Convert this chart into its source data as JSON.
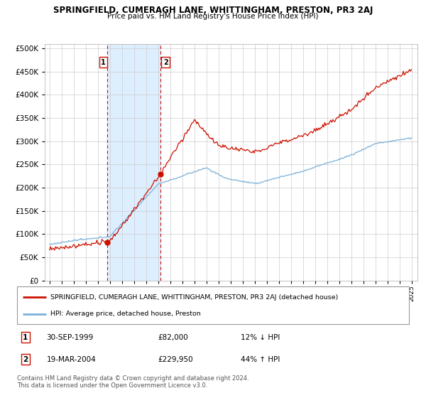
{
  "title": "SPRINGFIELD, CUMERAGH LANE, WHITTINGHAM, PRESTON, PR3 2AJ",
  "subtitle": "Price paid vs. HM Land Registry's House Price Index (HPI)",
  "yticks": [
    0,
    50000,
    100000,
    150000,
    200000,
    250000,
    300000,
    350000,
    400000,
    450000,
    500000
  ],
  "ylim": [
    0,
    510000
  ],
  "hpi_color": "#7ab0d8",
  "price_color": "#cc1100",
  "sale1": {
    "date_num": 1999.75,
    "price": 82000,
    "label": "1"
  },
  "sale2": {
    "date_num": 2004.22,
    "price": 229950,
    "label": "2"
  },
  "legend_price_label": "SPRINGFIELD, CUMERAGH LANE, WHITTINGHAM, PRESTON, PR3 2AJ (detached house)",
  "legend_hpi_label": "HPI: Average price, detached house, Preston",
  "table_row1": [
    "1",
    "30-SEP-1999",
    "£82,000",
    "12% ↓ HPI"
  ],
  "table_row2": [
    "2",
    "19-MAR-2004",
    "£229,950",
    "44% ↑ HPI"
  ],
  "footnote": "Contains HM Land Registry data © Crown copyright and database right 2024.\nThis data is licensed under the Open Government Licence v3.0.",
  "background_color": "#ffffff",
  "plot_bg_color": "#ffffff",
  "grid_color": "#cccccc",
  "shade_color": "#ddeeff"
}
